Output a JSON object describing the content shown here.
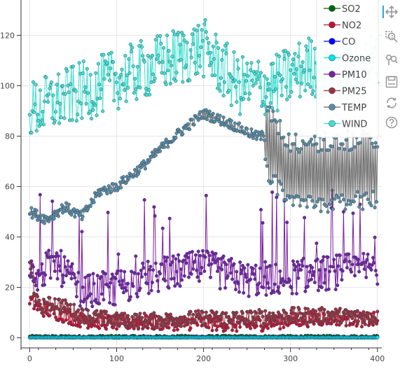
{
  "chart_data": {
    "type": "line",
    "title": "",
    "xlabel": "",
    "ylabel": "",
    "xlim": [
      -10,
      405
    ],
    "ylim": [
      -4,
      134
    ],
    "x_ticks": [
      0,
      100,
      200,
      300,
      400
    ],
    "y_ticks": [
      0,
      20,
      40,
      60,
      80,
      100,
      120
    ],
    "grid": true,
    "legend_position": "top-right",
    "n_points": 401,
    "series": [
      {
        "name": "SO2",
        "color": "#006400",
        "anchors_x": [
          0,
          400
        ],
        "anchors_y": [
          0.4,
          0.4
        ],
        "jitter": 0.5
      },
      {
        "name": "NO2",
        "color": "#c8102e",
        "anchors_x": [
          0,
          10,
          30,
          60,
          100,
          150,
          200,
          250,
          300,
          350,
          400
        ],
        "anchors_y": [
          15,
          12,
          10,
          7,
          6,
          6,
          6,
          5,
          7,
          8,
          7
        ],
        "jitter": 3
      },
      {
        "name": "CO",
        "color": "#0000ff",
        "anchors_x": [
          0,
          400
        ],
        "anchors_y": [
          0.2,
          0.2
        ],
        "jitter": 0.2
      },
      {
        "name": "Ozone",
        "color": "#00e5ee",
        "anchors_x": [
          0,
          400
        ],
        "anchors_y": [
          0.1,
          0.1
        ],
        "jitter": 0.1
      },
      {
        "name": "PM10",
        "color": "#7b1fa2",
        "anchors_x": [
          0,
          10,
          30,
          60,
          100,
          150,
          200,
          250,
          300,
          350,
          400
        ],
        "anchors_y": [
          30,
          25,
          30,
          18,
          20,
          25,
          28,
          23,
          24,
          26,
          28
        ],
        "jitter": 7
      },
      {
        "name": "PM25",
        "color": "#a0303a",
        "anchors_x": [
          0,
          10,
          30,
          60,
          100,
          150,
          200,
          250,
          300,
          350,
          400
        ],
        "anchors_y": [
          28,
          12,
          14,
          9,
          7,
          7,
          8,
          8,
          9,
          9,
          8
        ],
        "jitter": 3
      },
      {
        "name": "TEMP",
        "color": "#5f8aa0",
        "anchors_x": [
          0,
          20,
          40,
          60,
          80,
          100,
          130,
          160,
          200,
          230,
          260,
          270,
          300,
          400
        ],
        "anchors_y": [
          50,
          47,
          52,
          48,
          58,
          60,
          68,
          78,
          89,
          85,
          80,
          80,
          65,
          67
        ],
        "jitter": 2
      },
      {
        "name": "WIND",
        "color": "#40e0d0",
        "anchors_x": [
          0,
          40,
          80,
          120,
          160,
          200,
          240,
          280,
          320,
          360,
          400
        ],
        "anchors_y": [
          90,
          95,
          100,
          105,
          110,
          115,
          100,
          100,
          108,
          105,
          110
        ],
        "jitter": 12
      }
    ]
  },
  "toolbar": {
    "tools": [
      "pan-icon",
      "box-zoom-icon",
      "wheel-zoom-icon",
      "save-icon",
      "reset-icon",
      "help-icon"
    ]
  }
}
